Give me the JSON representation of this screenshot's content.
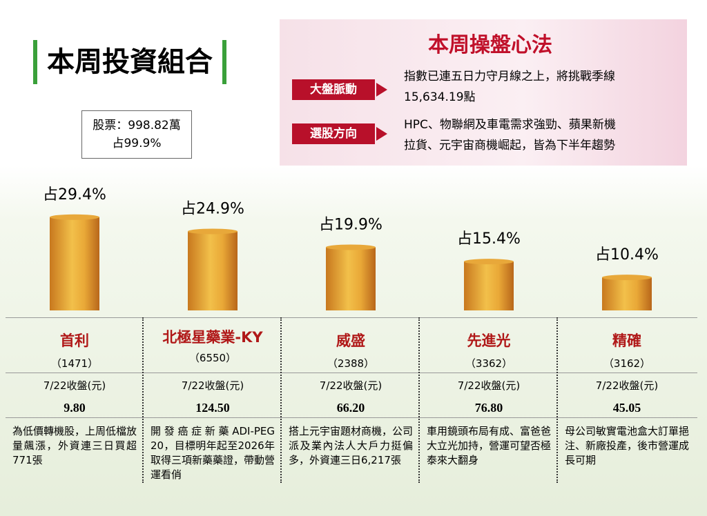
{
  "header": {
    "title": "本周投資組合",
    "stock_label": "股票：998.82萬",
    "stock_share": "占99.9%"
  },
  "panel": {
    "title": "本周操盤心法",
    "items": [
      {
        "label": "大盤脈動",
        "lines": [
          "指數已連五日力守月線之上，將挑戰季線",
          "15,634.19點"
        ]
      },
      {
        "label": "選股方向",
        "lines": [
          "HPC、物聯網及車電需求強勁、蘋果新機",
          "拉貨、元宇宙商機崛起，皆為下半年趨勢"
        ]
      }
    ]
  },
  "chart_data": {
    "type": "bar",
    "categories": [
      "首利",
      "北極星藥業-KY",
      "威盛",
      "先進光",
      "精確"
    ],
    "values": [
      29.4,
      24.9,
      19.9,
      15.4,
      10.4
    ],
    "value_labels": [
      "占29.4%",
      "占24.9%",
      "占19.9%",
      "占15.4%",
      "占10.4%"
    ],
    "color": "#e8a83a"
  },
  "stocks": [
    {
      "code": "（1471）",
      "price_label": "7/22收盤(元)",
      "price": "9.80",
      "note": "為低價轉機股，上周低檔放量飆漲，外資連三日買超771張"
    },
    {
      "code": "（6550）",
      "price_label": "7/22收盤(元)",
      "price": "124.50",
      "note": "開發癌症新藥ADI-PEG 20，目標明年起至2026年取得三項新藥藥證，帶動營運看俏"
    },
    {
      "code": "（2388）",
      "price_label": "7/22收盤(元)",
      "price": "66.20",
      "note": "搭上元宇宙題材商機，公司派及業內法人大戶力挺偏多，外資連三日6,217張"
    },
    {
      "code": "（3362）",
      "price_label": "7/22收盤(元)",
      "price": "76.80",
      "note": "車用鏡頭布局有成、富爸爸大立光加持，營運可望否極泰來大翻身"
    },
    {
      "code": "（3162）",
      "price_label": "7/22收盤(元)",
      "price": "45.05",
      "note": "母公司敏實電池盒大訂單挹注、新廠投產，後市營運成長可期"
    }
  ]
}
